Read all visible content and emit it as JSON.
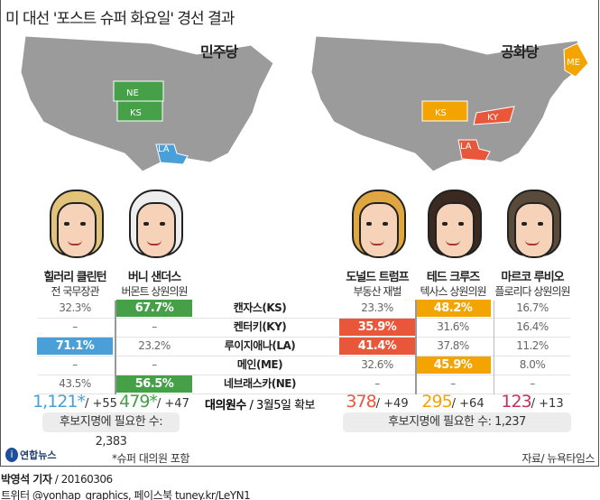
{
  "title": "미 대선 '포스트 슈퍼 화요일' 경선 결과",
  "parties": {
    "dem": "민주당",
    "rep": "공화당"
  },
  "map_labels": {
    "dem": [
      "NE",
      "KS",
      "LA"
    ],
    "rep": [
      "ME",
      "KS",
      "KY",
      "LA"
    ]
  },
  "colors": {
    "clinton": "#4a9fd8",
    "sanders": "#45a048",
    "trump": "#e9573a",
    "cruz": "#f3a400",
    "rubio": "#c8325a"
  },
  "candidates": [
    {
      "name": "힐러리 클린턴",
      "sub": "전 국무장관",
      "delegates": "1,121*",
      "gain": "/ +55"
    },
    {
      "name": "버니 샌더스",
      "sub": "버몬트 상원의원",
      "delegates": "479*",
      "gain": "/ +47"
    },
    {
      "name": "도널드 트럼프",
      "sub": "부동산 재벌",
      "delegates": "378",
      "gain": "/ +49"
    },
    {
      "name": "테드 크루즈",
      "sub": "텍사스 상원의원",
      "delegates": "295",
      "gain": "/ +64"
    },
    {
      "name": "마르코 루비오",
      "sub": "플로리다 상원의원",
      "delegates": "123",
      "gain": "/ +13"
    }
  ],
  "rows": [
    {
      "state": "캔자스(KS)",
      "values": [
        "32.3%",
        "67.7%",
        "23.3%",
        "48.2%",
        "16.7%"
      ],
      "winners": [
        1,
        3
      ]
    },
    {
      "state": "켄터키(KY)",
      "values": [
        "–",
        "–",
        "35.9%",
        "31.6%",
        "16.4%"
      ],
      "winners": [
        2
      ]
    },
    {
      "state": "루이지애나(LA)",
      "values": [
        "71.1%",
        "23.2%",
        "41.4%",
        "37.8%",
        "11.2%"
      ],
      "winners": [
        0,
        2
      ]
    },
    {
      "state": "메인(ME)",
      "values": [
        "–",
        "–",
        "32.6%",
        "45.9%",
        "8.0%"
      ],
      "winners": [
        3
      ]
    },
    {
      "state": "네브래스카(NE)",
      "values": [
        "43.5%",
        "56.5%",
        "–",
        "–",
        "–"
      ],
      "winners": [
        1
      ]
    }
  ],
  "delegates_label": "대의원수",
  "delegates_date": "/ 3월5일 확보",
  "need_dem": "후보지명에 필요한 수: 2,383",
  "need_rep": "후보지명에 필요한 수: 1,237",
  "logo": "연합뉴스",
  "note": "*슈퍼 대의원 포함",
  "source": "자료/ 뉴욕타임스",
  "byline_name": "박영석 기자",
  "byline_date": "/ 20160306",
  "social": "트위터 @yonhap_graphics, 페이스북 tuney.kr/LeYN1"
}
